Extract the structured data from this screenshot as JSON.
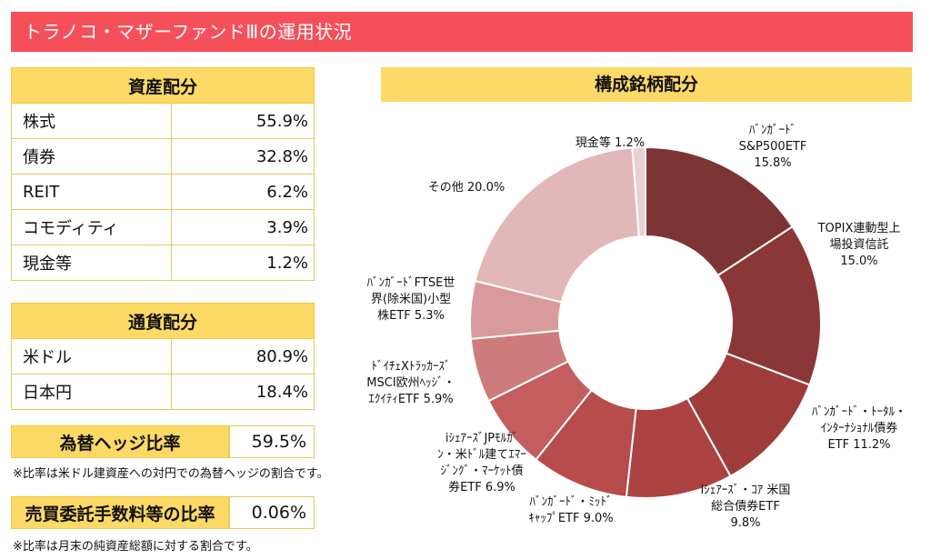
{
  "page_title": "トラノコ・マザーファンドⅢの運用状況",
  "asset_allocation": {
    "header": "資産配分",
    "rows": [
      {
        "label": "株式",
        "value": "55.9%"
      },
      {
        "label": "債券",
        "value": "32.8%"
      },
      {
        "label": "REIT",
        "value": "6.2%"
      },
      {
        "label": "コモディティ",
        "value": "3.9%"
      },
      {
        "label": "現金等",
        "value": "1.2%"
      }
    ]
  },
  "currency_allocation": {
    "header": "通貨配分",
    "rows": [
      {
        "label": "米ドル",
        "value": "80.9%"
      },
      {
        "label": "日本円",
        "value": "18.4%"
      }
    ]
  },
  "hedge_ratio": {
    "label": "為替ヘッジ比率",
    "value": "59.5%",
    "note": "※比率は米ドル建資産への対円での為替ヘッジの割合です。"
  },
  "fee_ratio": {
    "label": "売買委託手数料等の比率",
    "value": "0.06%",
    "note": "※比率は月末の純資産総額に対する割合です。"
  },
  "chart_data": {
    "type": "pie",
    "donut": true,
    "title": "構成銘柄配分",
    "slices": [
      {
        "label_lines": [
          "ﾊﾞﾝｶﾞｰﾄﾞ",
          "S&P500ETF",
          "15.8%"
        ],
        "value": 15.8,
        "color": "#7d3434"
      },
      {
        "label_lines": [
          "TOPIX連動型上",
          "場投資信託",
          "15.0%"
        ],
        "value": 15.0,
        "color": "#8c3737"
      },
      {
        "label_lines": [
          "ﾊﾞﾝｶﾞｰﾄﾞ・ﾄｰﾀﾙ・",
          "ｲﾝﾀｰﾅｼｮﾅﾙ債券",
          "ETF 11.2%"
        ],
        "value": 11.2,
        "color": "#9e3c3c"
      },
      {
        "label_lines": [
          "iｼｪｱｰｽﾞ・ｺｱ 米国",
          "総合債券ETF",
          "9.8%"
        ],
        "value": 9.8,
        "color": "#ad4242"
      },
      {
        "label_lines": [
          "ﾊﾞﾝｶﾞｰﾄﾞ・ﾐｯﾄﾞ",
          "ｷｬｯﾌﾟETF 9.0%"
        ],
        "value": 9.0,
        "color": "#b84b4b"
      },
      {
        "label_lines": [
          "iｼｪｱｰｽﾞJPﾓﾙｶﾞ",
          "ﾝ・米ﾄﾞﾙ建てｴﾏｰ",
          "ｼﾞﾝｸﾞ・ﾏｰｹｯﾄ債",
          "券ETF 6.9%"
        ],
        "value": 6.9,
        "color": "#c45e5e"
      },
      {
        "label_lines": [
          "ﾄﾞｲﾁｪXﾄﾗｯｶｰｽﾞ",
          "MSCI欧州ﾍｯｼﾞ・",
          "ｴｸｲﾃｨETF 5.9%"
        ],
        "value": 5.9,
        "color": "#cd7b7b"
      },
      {
        "label_lines": [
          "ﾊﾞﾝｶﾞｰﾄﾞFTSE世",
          "界(除米国)小型",
          "株ETF 5.3%"
        ],
        "value": 5.3,
        "color": "#d89a9a"
      },
      {
        "label_lines": [
          "その他 20.0%"
        ],
        "value": 20.0,
        "color": "#e2b7b7"
      },
      {
        "label_lines": [
          "現金等 1.2%"
        ],
        "value": 1.2,
        "color": "#ead0d0"
      }
    ]
  }
}
